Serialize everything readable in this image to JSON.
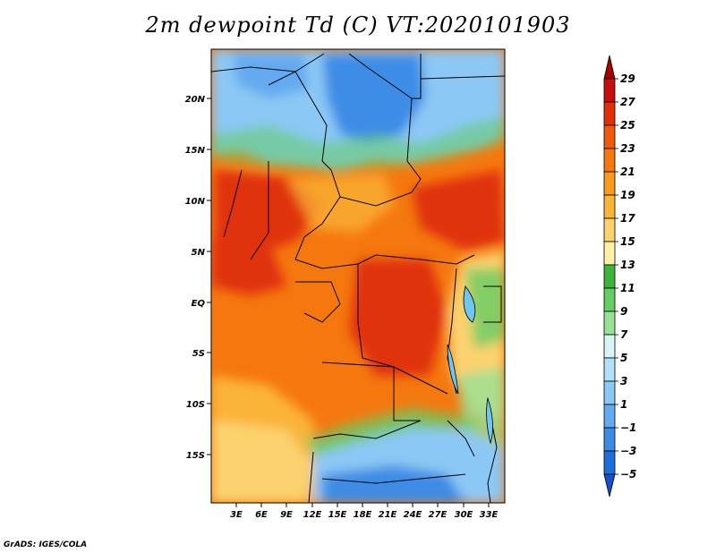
{
  "title": "2m dewpoint Td (C) VT:2020101903",
  "credit": "GrADS: IGES/COLA",
  "map": {
    "lat_ticks": [
      "20N",
      "15N",
      "10N",
      "5N",
      "EQ",
      "5S",
      "10S",
      "15S"
    ],
    "lon_ticks": [
      "3E",
      "6E",
      "9E",
      "12E",
      "15E",
      "18E",
      "21E",
      "24E",
      "27E",
      "30E",
      "33E"
    ]
  },
  "colorbar": {
    "levels": [
      "29",
      "27",
      "25",
      "23",
      "21",
      "19",
      "17",
      "15",
      "13",
      "11",
      "9",
      "7",
      "5",
      "3",
      "1",
      "−1",
      "−3",
      "−5"
    ],
    "colors": [
      "#a50000",
      "#c80f0f",
      "#e0300a",
      "#f05a0a",
      "#f5780f",
      "#f79a1e",
      "#fab437",
      "#fcd26e",
      "#fff0a5",
      "#3cb43c",
      "#64cd64",
      "#96e196",
      "#d7f5f5",
      "#b4e1fa",
      "#8cc8f5",
      "#64aaf0",
      "#3c8ce6",
      "#1e6edc",
      "#1450c8"
    ]
  }
}
